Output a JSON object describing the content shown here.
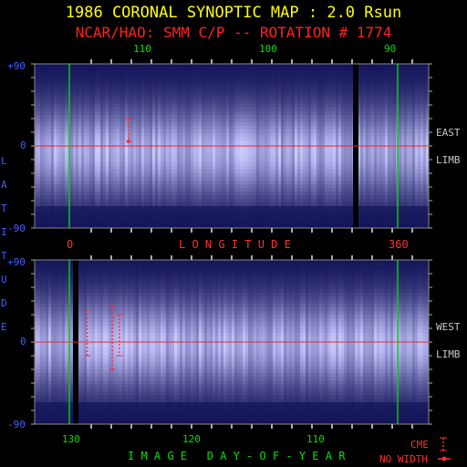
{
  "header": {
    "title": "1986 CORONAL SYNOPTIC MAP : 2.0 Rsun",
    "subtitle": "NCAR/HAO: SMM C/P -- ROTATION # 1774"
  },
  "axes": {
    "top_ticks": [
      "110",
      "100",
      "90"
    ],
    "lat_top_labels": [
      "+90",
      "0",
      "-90"
    ],
    "lat_bottom_labels": [
      "+90",
      "0",
      "-90"
    ],
    "mid_left": "0",
    "mid_right": "360",
    "longitude_label": "L O N G I T U D E",
    "latitude_label_letters": [
      "L",
      "A",
      "T",
      "I",
      "T",
      "U",
      "D",
      "E"
    ],
    "bottom_ticks": [
      "130",
      "120",
      "110"
    ],
    "xlabel": "I M A G E   D A Y - O F - Y E A R"
  },
  "panel_labels": {
    "east": "EAST",
    "west": "WEST",
    "limb": "LIMB"
  },
  "legend": {
    "cme": "CME",
    "no_width": "NO WIDTH"
  },
  "chart_data": {
    "type": "heatmap",
    "title": "1986 CORONAL SYNOPTIC MAP : 2.0 Rsun",
    "subtitle": "NCAR/HAO: SMM C/P -- ROTATION # 1774",
    "xlabel": "IMAGE DAY-OF-YEAR",
    "ylabel": "LATITUDE",
    "longitude_range": [
      0,
      360
    ],
    "latitude_range": [
      -90,
      90
    ],
    "panels": [
      {
        "name": "EAST LIMB",
        "top_axis_day_ticks": [
          110,
          100,
          90
        ],
        "cme": [
          {
            "longitude": 65,
            "lat_range": [
              5,
              30
            ],
            "no_width": true
          }
        ]
      },
      {
        "name": "WEST LIMB",
        "bottom_axis_day_ticks": [
          130,
          120,
          110
        ],
        "cme": [
          {
            "longitude": 20,
            "lat_range": [
              -15,
              35
            ]
          },
          {
            "longitude": 47,
            "lat_range": [
              -30,
              40
            ]
          },
          {
            "longitude": 55,
            "lat_range": [
              -15,
              30
            ]
          }
        ]
      }
    ],
    "colors": {
      "background": "#000000",
      "title": "#ffff00",
      "subtitle": "#ff2020",
      "green_label": "#00e000",
      "blue_label": "#4060ff",
      "red_label": "#ff3030",
      "gray": "#c8c8c8",
      "equator": "#ff2020",
      "marker": "#00d000"
    }
  }
}
